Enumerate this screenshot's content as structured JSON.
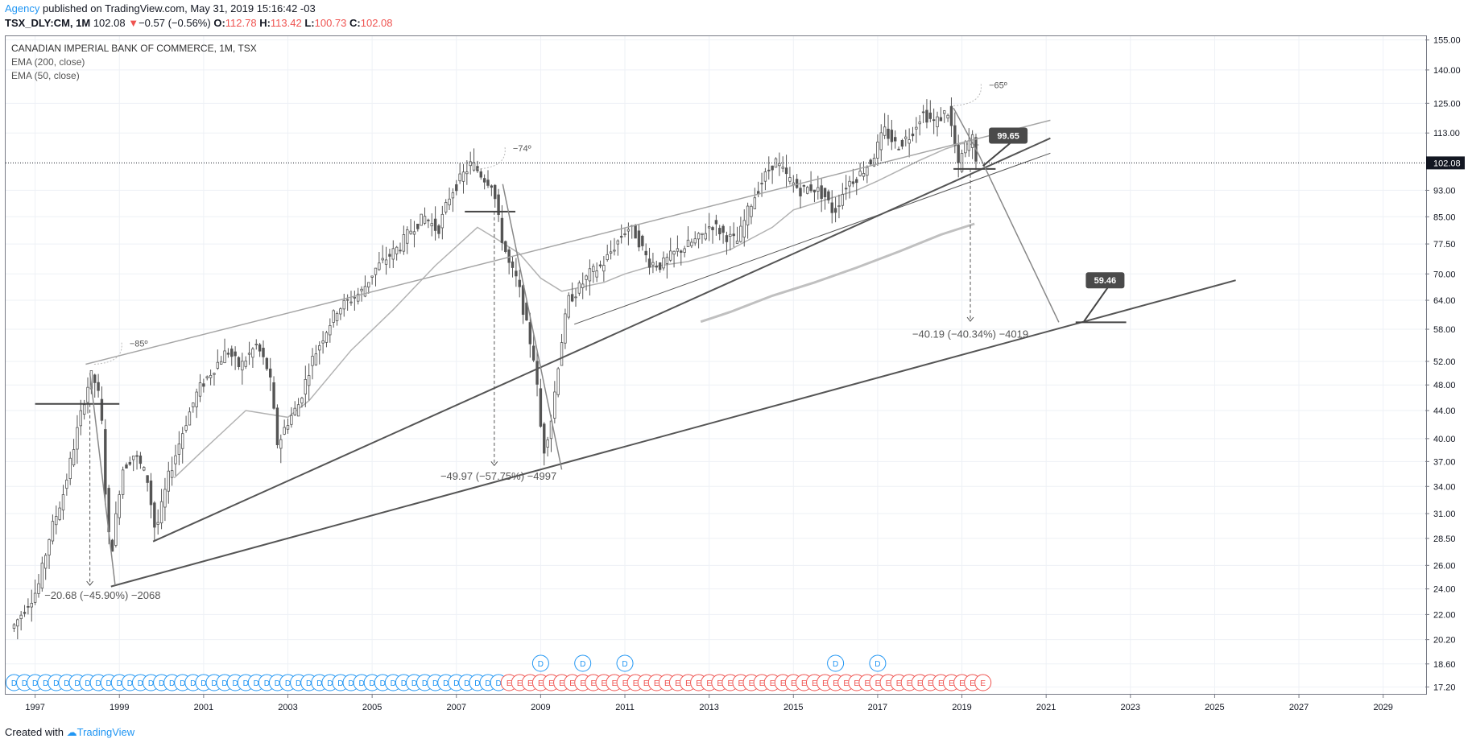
{
  "header": {
    "author": "Agency",
    "published_text": "published on TradingView.com, May 31, 2019 15:16:42 -03"
  },
  "symbol_bar": {
    "symbol": "TSX_DLY:CM, 1M",
    "last": "102.08",
    "change": "−0.57 (−0.56%)",
    "o_label": "O:",
    "o_value": "112.78",
    "h_label": "H:",
    "h_value": "113.42",
    "l_label": "L:",
    "l_value": "100.73",
    "c_label": "C:",
    "c_value": "102.08"
  },
  "legend": {
    "title": "CANADIAN IMPERIAL BANK OF COMMERCE, 1M, TSX",
    "line1": "EMA (200, close)",
    "line2": "EMA (50, close)"
  },
  "footer": {
    "created_with": "Created with",
    "brand": "TradingView"
  },
  "colors": {
    "candle": "#555555",
    "trendline": "#555555",
    "ema50": "#b2b2b2",
    "ema200": "#c0c0c0",
    "dividend": "#2196f3",
    "earnings": "#ef5350",
    "grid": "#eef1f6",
    "label_bg": "#4a4a4a"
  },
  "chart_data": {
    "type": "candlestick",
    "y_scale": "log",
    "ylim": [
      16.8,
      157
    ],
    "xlim": [
      1996.3,
      2030.0
    ],
    "x_ticks": [
      "1997",
      "1999",
      "2001",
      "2003",
      "2005",
      "2007",
      "2009",
      "2011",
      "2013",
      "2015",
      "2017",
      "2019",
      "2021",
      "2023",
      "2025",
      "2027",
      "2029"
    ],
    "y_ticks": [
      "155.00",
      "140.00",
      "125.00",
      "113.00",
      "102.08",
      "93.00",
      "85.00",
      "77.50",
      "70.00",
      "64.00",
      "58.00",
      "52.00",
      "48.00",
      "44.00",
      "40.00",
      "37.00",
      "34.00",
      "31.00",
      "28.50",
      "26.00",
      "24.00",
      "22.00",
      "20.20",
      "18.60",
      "17.20"
    ],
    "last_price": 102.08,
    "series": [
      {
        "name": "price",
        "points": [
          [
            1996.5,
            21
          ],
          [
            1996.8,
            22.5
          ],
          [
            1997.1,
            24
          ],
          [
            1997.4,
            29
          ],
          [
            1997.7,
            33
          ],
          [
            1998.0,
            40
          ],
          [
            1998.25,
            47
          ],
          [
            1998.4,
            50
          ],
          [
            1998.6,
            45
          ],
          [
            1998.75,
            30
          ],
          [
            1998.85,
            27
          ],
          [
            1999.1,
            36
          ],
          [
            1999.4,
            38
          ],
          [
            1999.7,
            35
          ],
          [
            1999.9,
            29
          ],
          [
            2000.2,
            35
          ],
          [
            2000.6,
            42
          ],
          [
            2000.9,
            47
          ],
          [
            2001.2,
            50
          ],
          [
            2001.6,
            54
          ],
          [
            2001.9,
            51
          ],
          [
            2002.3,
            55
          ],
          [
            2002.6,
            50
          ],
          [
            2002.8,
            39
          ],
          [
            2003.0,
            42
          ],
          [
            2003.3,
            45
          ],
          [
            2003.6,
            52
          ],
          [
            2003.9,
            57
          ],
          [
            2004.2,
            62
          ],
          [
            2004.5,
            64
          ],
          [
            2004.8,
            66
          ],
          [
            2005.1,
            71
          ],
          [
            2005.4,
            74
          ],
          [
            2005.7,
            77
          ],
          [
            2006.0,
            82
          ],
          [
            2006.3,
            85
          ],
          [
            2006.6,
            81
          ],
          [
            2006.9,
            92
          ],
          [
            2007.2,
            98
          ],
          [
            2007.4,
            102
          ],
          [
            2007.7,
            97
          ],
          [
            2007.9,
            95
          ],
          [
            2008.1,
            80
          ],
          [
            2008.3,
            72
          ],
          [
            2008.5,
            68
          ],
          [
            2008.7,
            59
          ],
          [
            2008.9,
            52
          ],
          [
            2009.1,
            38
          ],
          [
            2009.3,
            43
          ],
          [
            2009.5,
            54
          ],
          [
            2009.7,
            64
          ],
          [
            2009.9,
            66
          ],
          [
            2010.2,
            70
          ],
          [
            2010.5,
            72
          ],
          [
            2010.8,
            77
          ],
          [
            2011.1,
            82
          ],
          [
            2011.3,
            80
          ],
          [
            2011.6,
            73
          ],
          [
            2011.9,
            72
          ],
          [
            2012.2,
            75
          ],
          [
            2012.5,
            77
          ],
          [
            2012.8,
            79
          ],
          [
            2013.1,
            83
          ],
          [
            2013.4,
            80
          ],
          [
            2013.7,
            78
          ],
          [
            2014.0,
            88
          ],
          [
            2014.3,
            96
          ],
          [
            2014.6,
            103
          ],
          [
            2014.9,
            97
          ],
          [
            2015.2,
            93
          ],
          [
            2015.5,
            94
          ],
          [
            2015.8,
            91
          ],
          [
            2016.0,
            86
          ],
          [
            2016.3,
            95
          ],
          [
            2016.6,
            98
          ],
          [
            2016.9,
            103
          ],
          [
            2017.2,
            114
          ],
          [
            2017.5,
            108
          ],
          [
            2017.8,
            112
          ],
          [
            2018.1,
            121
          ],
          [
            2018.4,
            117
          ],
          [
            2018.7,
            122
          ],
          [
            2018.85,
            111
          ],
          [
            2018.95,
            100
          ],
          [
            2019.1,
            108
          ],
          [
            2019.3,
            111
          ],
          [
            2019.4,
            102
          ]
        ]
      },
      {
        "name": "EMA (50, close)",
        "points": [
          [
            2000.3,
            35
          ],
          [
            2001.0,
            38.5
          ],
          [
            2002.0,
            44
          ],
          [
            2003.0,
            43
          ],
          [
            2003.5,
            45.5
          ],
          [
            2004.5,
            54
          ],
          [
            2005.5,
            62
          ],
          [
            2006.5,
            72
          ],
          [
            2007.5,
            82
          ],
          [
            2008.0,
            78.5
          ],
          [
            2008.5,
            75
          ],
          [
            2009.0,
            69
          ],
          [
            2009.5,
            66
          ],
          [
            2010.0,
            67
          ],
          [
            2010.5,
            68
          ],
          [
            2011.0,
            70
          ],
          [
            2011.5,
            71.5
          ],
          [
            2012.5,
            73
          ],
          [
            2013.5,
            76
          ],
          [
            2014.5,
            82
          ],
          [
            2015.0,
            87
          ],
          [
            2016.0,
            91
          ],
          [
            2016.5,
            93
          ],
          [
            2017.0,
            96
          ],
          [
            2018.0,
            103
          ],
          [
            2018.6,
            107
          ],
          [
            2019.0,
            109
          ],
          [
            2019.4,
            108.5
          ]
        ]
      },
      {
        "name": "EMA (200, close)",
        "points": [
          [
            2012.8,
            59.5
          ],
          [
            2013.5,
            61.5
          ],
          [
            2014.5,
            65
          ],
          [
            2015.5,
            68
          ],
          [
            2016.5,
            71.5
          ],
          [
            2017.5,
            75.5
          ],
          [
            2018.5,
            80
          ],
          [
            2019.3,
            83
          ]
        ]
      }
    ],
    "trendlines": [
      {
        "points": [
          [
            1998.2,
            51.5
          ],
          [
            2021.1,
            118
          ]
        ],
        "kind": "upper_channel"
      },
      {
        "points": [
          [
            2009.8,
            59
          ],
          [
            2021.1,
            105.5
          ]
        ],
        "kind": "lower_channel"
      },
      {
        "points": [
          [
            1999.8,
            28.2
          ],
          [
            2021.1,
            111
          ]
        ],
        "kind": "support_long"
      },
      {
        "points": [
          [
            1998.8,
            24.2
          ],
          [
            2025.5,
            68.5
          ]
        ],
        "kind": "support_base"
      }
    ],
    "annotations": [
      {
        "text": "−20.68 (−45.90%) −2068"
      },
      {
        "text": "−49.97 (−57.75%) −4997"
      },
      {
        "text": "−40.19 (−40.34%) −4019"
      },
      {
        "text": "−85º"
      },
      {
        "text": "−74º"
      },
      {
        "text": "−65º"
      },
      {
        "text": "99.65"
      },
      {
        "text": "59.46"
      }
    ],
    "event_markers": {
      "dividend_letter": "D",
      "earnings_letter": "E",
      "dividend_raised_x": [
        2009.0,
        2010.0,
        2011.0,
        2016.0,
        2017.0
      ],
      "dividend_row": {
        "from": 1996.5,
        "to": 2008.0,
        "step": 0.25
      },
      "earnings_row": {
        "from": 2008.25,
        "to": 2019.5,
        "step": 0.25
      }
    }
  }
}
